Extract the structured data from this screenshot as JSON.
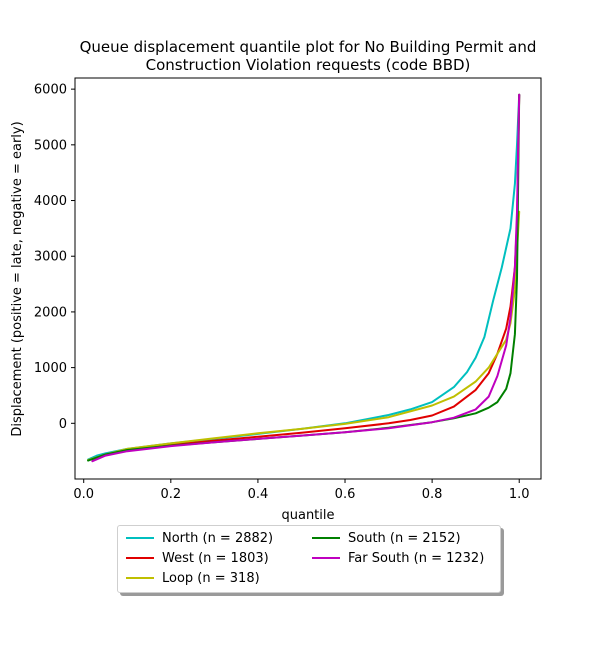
{
  "chart_data": {
    "type": "line",
    "title_line1": "Queue displacement quantile plot for No Building Permit and",
    "title_line2": "Construction Violation  requests (code BBD)",
    "xlabel": "quantile",
    "ylabel": "Displacement (positive = late, negative = early)",
    "xlim": [
      -0.02,
      1.05
    ],
    "ylim": [
      -1000,
      6200
    ],
    "xticks": [
      0.0,
      0.2,
      0.4,
      0.6,
      0.8,
      1.0
    ],
    "xtick_labels": [
      "0.0",
      "0.2",
      "0.4",
      "0.6",
      "0.8",
      "1.0"
    ],
    "yticks": [
      0,
      1000,
      2000,
      3000,
      4000,
      5000,
      6000
    ],
    "ytick_labels": [
      "0",
      "1000",
      "2000",
      "3000",
      "4000",
      "5000",
      "6000"
    ],
    "grid": false,
    "legend_position": "bottom-center",
    "series": [
      {
        "name": "North (n = 2882)",
        "color": "#00bfbf",
        "x": [
          0.01,
          0.03,
          0.05,
          0.1,
          0.2,
          0.3,
          0.4,
          0.5,
          0.6,
          0.7,
          0.75,
          0.8,
          0.85,
          0.88,
          0.9,
          0.92,
          0.94,
          0.96,
          0.98,
          0.99,
          0.995,
          1.0
        ],
        "y": [
          -650,
          -580,
          -540,
          -460,
          -360,
          -280,
          -190,
          -100,
          0,
          150,
          250,
          380,
          650,
          920,
          1180,
          1550,
          2200,
          2800,
          3500,
          4300,
          5000,
          5900
        ]
      },
      {
        "name": "West (n = 1803)",
        "color": "#e00000",
        "x": [
          0.02,
          0.05,
          0.1,
          0.2,
          0.3,
          0.4,
          0.5,
          0.6,
          0.7,
          0.75,
          0.8,
          0.85,
          0.9,
          0.93,
          0.95,
          0.97,
          0.98,
          0.99,
          0.995,
          1.0
        ],
        "y": [
          -650,
          -560,
          -480,
          -390,
          -310,
          -240,
          -170,
          -90,
          0,
          60,
          140,
          300,
          600,
          900,
          1250,
          1700,
          2100,
          2800,
          3600,
          5900
        ]
      },
      {
        "name": "Loop (n = 318)",
        "color": "#bfbf00",
        "x": [
          0.01,
          0.05,
          0.1,
          0.2,
          0.3,
          0.4,
          0.5,
          0.6,
          0.7,
          0.8,
          0.85,
          0.9,
          0.93,
          0.95,
          0.97,
          0.98,
          0.99,
          1.0
        ],
        "y": [
          -660,
          -560,
          -460,
          -360,
          -270,
          -180,
          -100,
          -10,
          110,
          320,
          480,
          750,
          1000,
          1250,
          1500,
          1800,
          2400,
          3800
        ]
      },
      {
        "name": "South (n = 2152)",
        "color": "#008000",
        "x": [
          0.01,
          0.05,
          0.1,
          0.2,
          0.3,
          0.4,
          0.5,
          0.6,
          0.7,
          0.8,
          0.85,
          0.9,
          0.93,
          0.95,
          0.97,
          0.98,
          0.99,
          0.995,
          1.0
        ],
        "y": [
          -670,
          -560,
          -480,
          -400,
          -340,
          -280,
          -220,
          -160,
          -80,
          20,
          90,
          180,
          280,
          380,
          620,
          900,
          1600,
          2600,
          5900
        ]
      },
      {
        "name": "Far South (n = 1232)",
        "color": "#bf00bf",
        "x": [
          0.02,
          0.05,
          0.1,
          0.2,
          0.3,
          0.4,
          0.5,
          0.6,
          0.7,
          0.8,
          0.85,
          0.9,
          0.93,
          0.95,
          0.97,
          0.98,
          0.99,
          0.995,
          1.0
        ],
        "y": [
          -680,
          -580,
          -500,
          -410,
          -340,
          -280,
          -220,
          -160,
          -90,
          20,
          100,
          250,
          480,
          850,
          1400,
          1900,
          2800,
          3800,
          5900
        ]
      }
    ]
  }
}
